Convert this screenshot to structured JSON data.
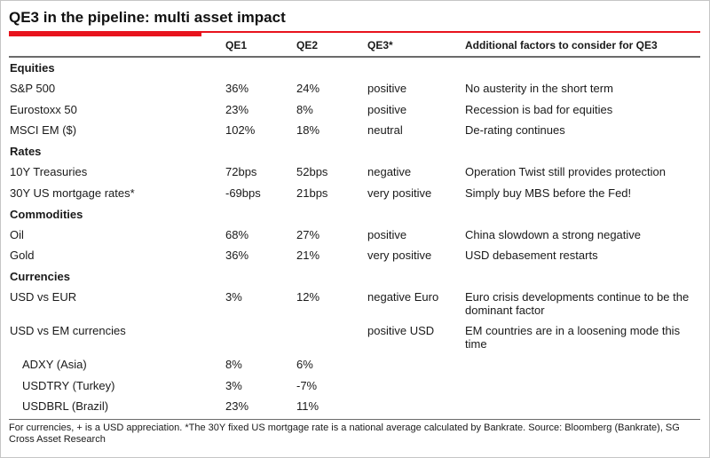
{
  "chart_data": {
    "type": "table",
    "title": "QE3 in the pipeline: multi asset impact",
    "header": {
      "qe1": "QE1",
      "qe2": "QE2",
      "qe3": "QE3*",
      "factors": "Additional factors to consider for QE3"
    },
    "rows": [
      {
        "kind": "section",
        "name": "Equities"
      },
      {
        "kind": "data",
        "name": "S&P 500",
        "qe1": "36%",
        "qe2": "24%",
        "qe3": "positive",
        "factors": "No austerity in the short term"
      },
      {
        "kind": "data",
        "name": "Eurostoxx 50",
        "qe1": "23%",
        "qe2": "8%",
        "qe3": "positive",
        "factors": "Recession is bad for equities"
      },
      {
        "kind": "data",
        "name": "MSCI EM ($)",
        "qe1": "102%",
        "qe2": "18%",
        "qe3": "neutral",
        "factors": "De-rating continues"
      },
      {
        "kind": "section",
        "name": "Rates"
      },
      {
        "kind": "data",
        "name": "10Y Treasuries",
        "qe1": "72bps",
        "qe2": "52bps",
        "qe3": "negative",
        "factors": "Operation Twist still provides protection"
      },
      {
        "kind": "data",
        "name": "30Y US mortgage rates*",
        "qe1": "-69bps",
        "qe2": "21bps",
        "qe3": "very positive",
        "factors": "Simply buy MBS before the Fed!"
      },
      {
        "kind": "section",
        "name": "Commodities"
      },
      {
        "kind": "data",
        "name": "Oil",
        "qe1": "68%",
        "qe2": "27%",
        "qe3": "positive",
        "factors": "China slowdown a strong negative"
      },
      {
        "kind": "data",
        "name": "Gold",
        "qe1": "36%",
        "qe2": "21%",
        "qe3": "very positive",
        "factors": "USD debasement restarts"
      },
      {
        "kind": "section",
        "name": "Currencies"
      },
      {
        "kind": "data",
        "name": "USD vs EUR",
        "qe1": "3%",
        "qe2": "12%",
        "qe3": "negative Euro",
        "factors": "Euro crisis developments continue to be the dominant factor"
      },
      {
        "kind": "data",
        "name": "USD vs EM currencies",
        "qe1": "",
        "qe2": "",
        "qe3": "positive USD",
        "factors": "EM countries are in a loosening mode this time"
      },
      {
        "kind": "data",
        "name": "ADXY (Asia)",
        "qe1": "8%",
        "qe2": "6%",
        "qe3": "",
        "factors": ""
      },
      {
        "kind": "data",
        "name": "USDTRY (Turkey)",
        "qe1": "3%",
        "qe2": "-7%",
        "qe3": "",
        "factors": ""
      },
      {
        "kind": "data",
        "name": "USDBRL (Brazil)",
        "qe1": "23%",
        "qe2": "11%",
        "qe3": "",
        "factors": ""
      }
    ],
    "footnote": "For currencies, + is a USD appreciation. *The 30Y fixed US mortgage rate is a national average calculated by Bankrate. Source: Bloomberg (Bankrate), SG Cross Asset Research"
  },
  "colors": {
    "accent_red": "#E8131D",
    "rule_gray": "#6B6B6B",
    "text": "#1A1A1A",
    "border_gray": "#C6C6C6"
  }
}
